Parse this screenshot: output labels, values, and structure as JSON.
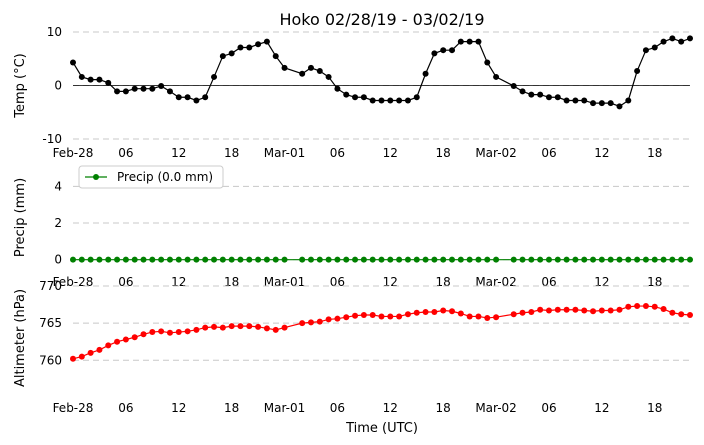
{
  "chart_data": {
    "title": "Hoko 02/28/19 - 03/02/19",
    "xlabel": "Time (UTC)",
    "x_start_hour": 0,
    "x_end_hour": 70,
    "x_ticks": [
      {
        "hour": 0,
        "label": "Feb-28"
      },
      {
        "hour": 6,
        "label": "06"
      },
      {
        "hour": 12,
        "label": "12"
      },
      {
        "hour": 18,
        "label": "18"
      },
      {
        "hour": 24,
        "label": "Mar-01"
      },
      {
        "hour": 30,
        "label": "06"
      },
      {
        "hour": 36,
        "label": "12"
      },
      {
        "hour": 42,
        "label": "18"
      },
      {
        "hour": 48,
        "label": "Mar-02"
      },
      {
        "hour": 54,
        "label": "06"
      },
      {
        "hour": 60,
        "label": "12"
      },
      {
        "hour": 66,
        "label": "18"
      }
    ],
    "panels": [
      {
        "type": "line",
        "ylabel": "Temp (°C)",
        "ylim": [
          -10,
          10
        ],
        "yticks": [
          -10,
          0,
          10
        ],
        "grid": true,
        "zero_line": true,
        "series": [
          {
            "name": "",
            "color": "#000000",
            "x": [
              0,
              1,
              2,
              3,
              4,
              5,
              6,
              7,
              8,
              9,
              10,
              11,
              12,
              13,
              14,
              15,
              16,
              17,
              18,
              19,
              20,
              21,
              22,
              23,
              24,
              26,
              27,
              28,
              29,
              30,
              31,
              32,
              33,
              34,
              35,
              36,
              37,
              38,
              39,
              40,
              41,
              42,
              43,
              44,
              45,
              46,
              47,
              48,
              50,
              51,
              52,
              53,
              54,
              55,
              56,
              57,
              58,
              59,
              60,
              61,
              62,
              63,
              64,
              65,
              66,
              67,
              68,
              69,
              70
            ],
            "y": [
              4.3,
              1.6,
              1.1,
              1.1,
              0.5,
              -1.1,
              -1.1,
              -0.6,
              -0.6,
              -0.6,
              -0.1,
              -1.1,
              -2.2,
              -2.2,
              -2.8,
              -2.2,
              1.6,
              5.5,
              6,
              7.1,
              7.1,
              7.7,
              8.2,
              5.5,
              3.3,
              2.2,
              3.3,
              2.7,
              1.6,
              -0.6,
              -1.7,
              -2.2,
              -2.2,
              -2.8,
              -2.8,
              -2.8,
              -2.8,
              -2.8,
              -2.2,
              2.2,
              6,
              6.6,
              6.6,
              8.2,
              8.2,
              8.2,
              4.3,
              1.6,
              -0.1,
              -1.1,
              -1.7,
              -1.7,
              -2.2,
              -2.2,
              -2.8,
              -2.8,
              -2.8,
              -3.3,
              -3.3,
              -3.3,
              -3.9,
              -2.8,
              2.7,
              6.6,
              7.1,
              8.2,
              8.8,
              8.2,
              8.8
            ]
          }
        ]
      },
      {
        "type": "line",
        "ylabel": "Precip (mm)",
        "ylim": [
          -0.4,
          5
        ],
        "yticks": [
          0,
          2,
          4
        ],
        "grid": true,
        "legend": "upper-left",
        "series": [
          {
            "name": "Precip (0.0 mm)",
            "color": "#008000",
            "x": [
              0,
              1,
              2,
              3,
              4,
              5,
              6,
              7,
              8,
              9,
              10,
              11,
              12,
              13,
              14,
              15,
              16,
              17,
              18,
              19,
              20,
              21,
              22,
              23,
              24,
              26,
              27,
              28,
              29,
              30,
              31,
              32,
              33,
              34,
              35,
              36,
              37,
              38,
              39,
              40,
              41,
              42,
              43,
              44,
              45,
              46,
              47,
              48,
              50,
              51,
              52,
              53,
              54,
              55,
              56,
              57,
              58,
              59,
              60,
              61,
              62,
              63,
              64,
              65,
              66,
              67,
              68,
              69,
              70
            ],
            "y": [
              0,
              0,
              0,
              0,
              0,
              0,
              0,
              0,
              0,
              0,
              0,
              0,
              0,
              0,
              0,
              0,
              0,
              0,
              0,
              0,
              0,
              0,
              0,
              0,
              0,
              0,
              0,
              0,
              0,
              0,
              0,
              0,
              0,
              0,
              0,
              0,
              0,
              0,
              0,
              0,
              0,
              0,
              0,
              0,
              0,
              0,
              0,
              0,
              0,
              0,
              0,
              0,
              0,
              0,
              0,
              0,
              0,
              0,
              0,
              0,
              0,
              0,
              0,
              0,
              0,
              0,
              0,
              0,
              0
            ]
          }
        ]
      },
      {
        "type": "line",
        "ylabel": "Altimeter (hPa)",
        "ylim": [
          756,
          770
        ],
        "yticks": [
          760,
          765,
          770
        ],
        "grid": true,
        "series": [
          {
            "name": "",
            "color": "#ff0000",
            "x": [
              0,
              1,
              2,
              3,
              4,
              5,
              6,
              7,
              8,
              9,
              10,
              11,
              12,
              13,
              14,
              15,
              16,
              17,
              18,
              19,
              20,
              21,
              22,
              23,
              24,
              26,
              27,
              28,
              29,
              30,
              31,
              32,
              33,
              34,
              35,
              36,
              37,
              38,
              39,
              40,
              41,
              42,
              43,
              44,
              45,
              46,
              47,
              48,
              50,
              51,
              52,
              53,
              54,
              55,
              56,
              57,
              58,
              59,
              60,
              61,
              62,
              63,
              64,
              65,
              66,
              67,
              68,
              69,
              70
            ],
            "y": [
              760.2,
              760.5,
              761.0,
              761.4,
              762.0,
              762.5,
              762.8,
              763.1,
              763.5,
              763.8,
              763.9,
              763.7,
              763.8,
              763.9,
              764.1,
              764.4,
              764.5,
              764.4,
              764.6,
              764.6,
              764.6,
              764.5,
              764.3,
              764.1,
              764.4,
              765.0,
              765.1,
              765.2,
              765.5,
              765.6,
              765.8,
              766.0,
              766.1,
              766.1,
              765.9,
              765.9,
              765.9,
              766.2,
              766.4,
              766.5,
              766.5,
              766.7,
              766.6,
              766.3,
              765.9,
              765.9,
              765.7,
              765.8,
              766.2,
              766.4,
              766.5,
              766.8,
              766.7,
              766.8,
              766.8,
              766.8,
              766.7,
              766.6,
              766.7,
              766.7,
              766.8,
              767.2,
              767.3,
              767.3,
              767.2,
              766.9,
              766.4,
              766.2,
              766.1
            ]
          }
        ]
      }
    ]
  }
}
